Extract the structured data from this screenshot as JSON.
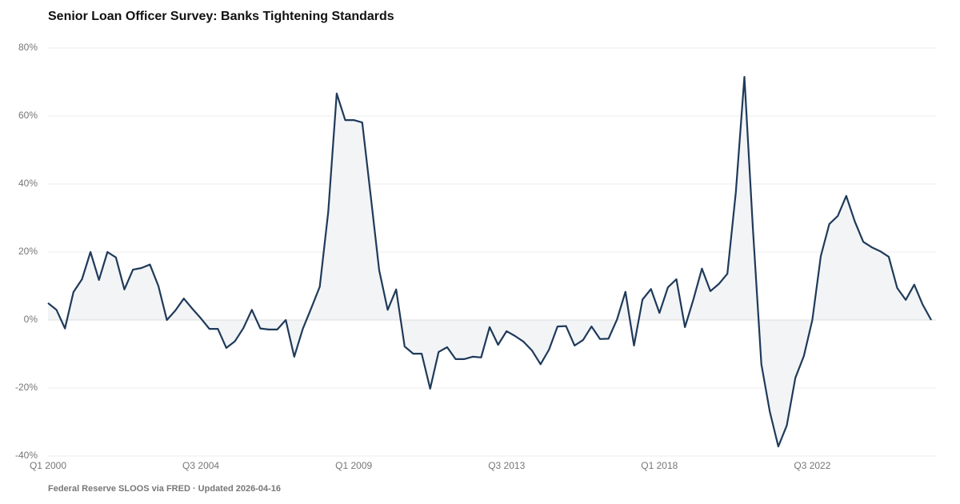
{
  "chart_data": {
    "type": "line",
    "title": "Senior Loan Officer Survey: Banks Tightening Standards",
    "source": "Federal Reserve SLOOS via FRED · Updated 2026-04-16",
    "categories": [
      "Q1 2000",
      null,
      null,
      null,
      null,
      null,
      null,
      null,
      null,
      null,
      null,
      null,
      null,
      null,
      null,
      null,
      null,
      null,
      "Q3 2004",
      null,
      null,
      null,
      null,
      null,
      null,
      null,
      null,
      null,
      null,
      null,
      null,
      null,
      null,
      null,
      null,
      null,
      "Q1 2009",
      null,
      null,
      null,
      null,
      null,
      null,
      null,
      null,
      null,
      null,
      null,
      null,
      null,
      null,
      null,
      null,
      null,
      "Q3 2013",
      null,
      null,
      null,
      null,
      null,
      null,
      null,
      null,
      null,
      null,
      null,
      null,
      null,
      null,
      null,
      null,
      null,
      "Q1 2018",
      null,
      null,
      null,
      null,
      null,
      null,
      null,
      null,
      null,
      null,
      null,
      null,
      null,
      null,
      null,
      null,
      null,
      "Q3 2022",
      null,
      null,
      null,
      null,
      null,
      null,
      null,
      null,
      null,
      null,
      null,
      null,
      null,
      null
    ],
    "series": [
      {
        "color": "#1f3a5a",
        "values": [
          5,
          3,
          -2.5,
          8.2,
          12,
          20,
          11.8,
          20,
          18.4,
          9,
          14.8,
          15.3,
          16.3,
          10,
          0,
          2.8,
          6.3,
          3.3,
          0.5,
          -2.6,
          -2.6,
          -8.2,
          -6.3,
          -2.4,
          3,
          -2.5,
          -2.8,
          -2.8,
          0,
          -10.8,
          -2.6,
          3.5,
          9.8,
          31.8,
          66.6,
          58.8,
          58.8,
          58.1,
          36.5,
          14.6,
          3,
          9,
          -7.8,
          -9.9,
          -9.9,
          -20.2,
          -9.4,
          -8,
          -11.5,
          -11.5,
          -10.8,
          -11,
          -2.1,
          -7.3,
          -3.3,
          -4.7,
          -6.4,
          -9,
          -13,
          -8.7,
          -1.9,
          -1.8,
          -7.5,
          -5.9,
          -1.9,
          -5.6,
          -5.5,
          0.1,
          8.3,
          -7.5,
          6,
          9.1,
          2.1,
          9.6,
          12,
          -2.1,
          6.1,
          15.1,
          8.5,
          10.6,
          13.6,
          37.6,
          71.5,
          27,
          -13,
          -27,
          -37.2,
          -31,
          -17,
          -10.6,
          0,
          18.8,
          28.2,
          30.6,
          36.5,
          29,
          23,
          21.4,
          20.2,
          18.6,
          9.4,
          5.9,
          10.4,
          4.5,
          0
        ]
      }
    ],
    "area_color": "#f2f4f6",
    "ylim": [
      -40,
      80
    ],
    "yticks": [
      {
        "value": -40,
        "label": "-40%"
      },
      {
        "value": -20,
        "label": "-20%"
      },
      {
        "value": 0,
        "label": "0%"
      },
      {
        "value": 20,
        "label": "20%"
      },
      {
        "value": 40,
        "label": "40%"
      },
      {
        "value": 60,
        "label": "60%"
      },
      {
        "value": 80,
        "label": "80%"
      }
    ],
    "grid": true
  }
}
